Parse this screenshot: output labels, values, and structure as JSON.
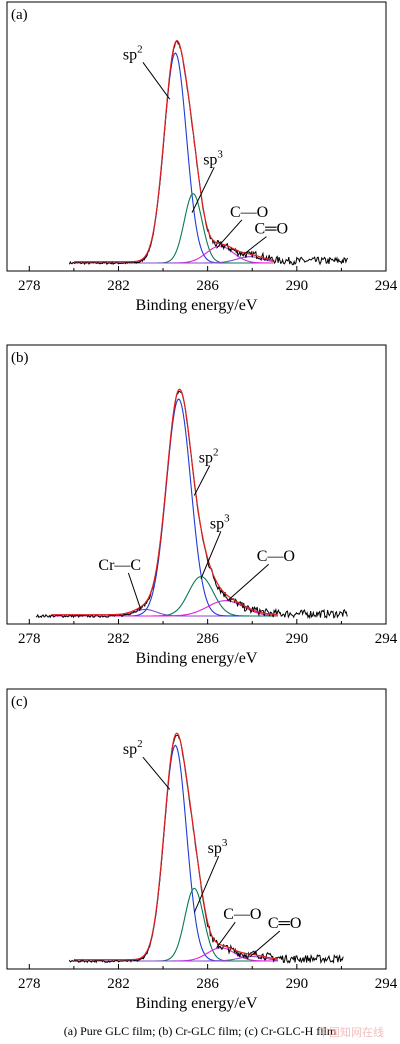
{
  "chart_data": [
    {
      "type": "line",
      "panel_label": "(a)",
      "xlabel": "Binding energy/eV",
      "ylabel": "",
      "xlim": [
        277,
        294
      ],
      "xticks": [
        278,
        282,
        286,
        290,
        294
      ],
      "ylim": [
        0,
        1.1
      ],
      "grid": false,
      "peaks": [
        {
          "name": "sp2",
          "center": 284.55,
          "height": 1.0,
          "sigma": 0.5,
          "color": "#1f3bd6"
        },
        {
          "name": "sp3",
          "center": 285.35,
          "height": 0.33,
          "sigma": 0.4,
          "color": "#0a7a55"
        },
        {
          "name": "C—O",
          "center": 286.55,
          "height": 0.08,
          "sigma": 0.6,
          "color": "#e01ee0"
        },
        {
          "name": "C═O",
          "center": 287.9,
          "height": 0.03,
          "sigma": 0.6,
          "color": "#8a4ad0"
        }
      ],
      "fit_range": [
        280.0,
        289.0
      ],
      "raw_range": [
        279.8,
        292.3
      ],
      "labels": [
        {
          "text": "sp",
          "sup": "2",
          "x": 282.2,
          "y": 0.97,
          "tip_x": 284.3,
          "tip_y": 0.78
        },
        {
          "text": "sp",
          "sup": "3",
          "x": 285.8,
          "y": 0.47,
          "tip_x": 285.3,
          "tip_y": 0.24
        },
        {
          "text": "C—O",
          "x": 287.0,
          "y": 0.22,
          "tip_x": 286.4,
          "tip_y": 0.07
        },
        {
          "text": "C═O",
          "x": 288.1,
          "y": 0.14,
          "tip_x": 287.6,
          "tip_y": 0.04
        }
      ]
    },
    {
      "type": "line",
      "panel_label": "(b)",
      "xlabel": "Binding energy/eV",
      "ylabel": "",
      "xlim": [
        277,
        294
      ],
      "xticks": [
        278,
        282,
        286,
        290,
        294
      ],
      "ylim": [
        0,
        1.1
      ],
      "grid": false,
      "peaks": [
        {
          "name": "Cr—C",
          "center": 283.2,
          "height": 0.03,
          "sigma": 0.5,
          "color": "#8a4ad0"
        },
        {
          "name": "sp2",
          "center": 284.7,
          "height": 0.99,
          "sigma": 0.55,
          "color": "#1f3bd6"
        },
        {
          "name": "sp3",
          "center": 285.7,
          "height": 0.18,
          "sigma": 0.55,
          "color": "#0a7a55"
        },
        {
          "name": "C—O",
          "center": 286.8,
          "height": 0.07,
          "sigma": 0.8,
          "color": "#e01ee0"
        }
      ],
      "fit_range": [
        279.0,
        289.2
      ],
      "raw_range": [
        278.3,
        292.3
      ],
      "labels": [
        {
          "text": "Cr—C",
          "x": 281.1,
          "y": 0.21,
          "tip_x": 283.0,
          "tip_y": 0.03
        },
        {
          "text": "sp",
          "sup": "2",
          "x": 285.6,
          "y": 0.7,
          "tip_x": 285.4,
          "tip_y": 0.55
        },
        {
          "text": "sp",
          "sup": "3",
          "x": 286.1,
          "y": 0.4,
          "tip_x": 285.7,
          "tip_y": 0.17
        },
        {
          "text": "C—O",
          "x": 288.2,
          "y": 0.25,
          "tip_x": 286.9,
          "tip_y": 0.07
        }
      ]
    },
    {
      "type": "line",
      "panel_label": "(c)",
      "xlabel": "Binding energy/eV",
      "ylabel": "",
      "xlim": [
        277,
        294
      ],
      "xticks": [
        278,
        282,
        286,
        290,
        294
      ],
      "ylim": [
        0,
        1.1
      ],
      "grid": false,
      "peaks": [
        {
          "name": "sp2",
          "center": 284.55,
          "height": 0.98,
          "sigma": 0.5,
          "color": "#1f3bd6"
        },
        {
          "name": "sp3",
          "center": 285.4,
          "height": 0.33,
          "sigma": 0.42,
          "color": "#0a7a55"
        },
        {
          "name": "C—O",
          "center": 286.6,
          "height": 0.06,
          "sigma": 0.6,
          "color": "#e01ee0"
        },
        {
          "name": "C═O",
          "center": 288.0,
          "height": 0.02,
          "sigma": 0.6,
          "color": "#8a4ad0"
        }
      ],
      "fit_range": [
        280.0,
        289.2
      ],
      "raw_range": [
        279.8,
        292.1
      ],
      "labels": [
        {
          "text": "sp",
          "sup": "2",
          "x": 282.2,
          "y": 0.94,
          "tip_x": 284.3,
          "tip_y": 0.78
        },
        {
          "text": "sp",
          "sup": "3",
          "x": 286.0,
          "y": 0.49,
          "tip_x": 285.4,
          "tip_y": 0.22
        },
        {
          "text": "C—O",
          "x": 286.7,
          "y": 0.19,
          "tip_x": 286.4,
          "tip_y": 0.06
        },
        {
          "text": "C═O",
          "x": 288.7,
          "y": 0.15,
          "tip_x": 287.9,
          "tip_y": 0.02
        }
      ]
    }
  ],
  "colors": {
    "raw": "#000000",
    "fit": "#e02020"
  },
  "caption": "(a)  Pure  GLC  film;  (b) Cr-GLC film; (c) Cr-GLC-H film",
  "watermark": "中国知网在线"
}
